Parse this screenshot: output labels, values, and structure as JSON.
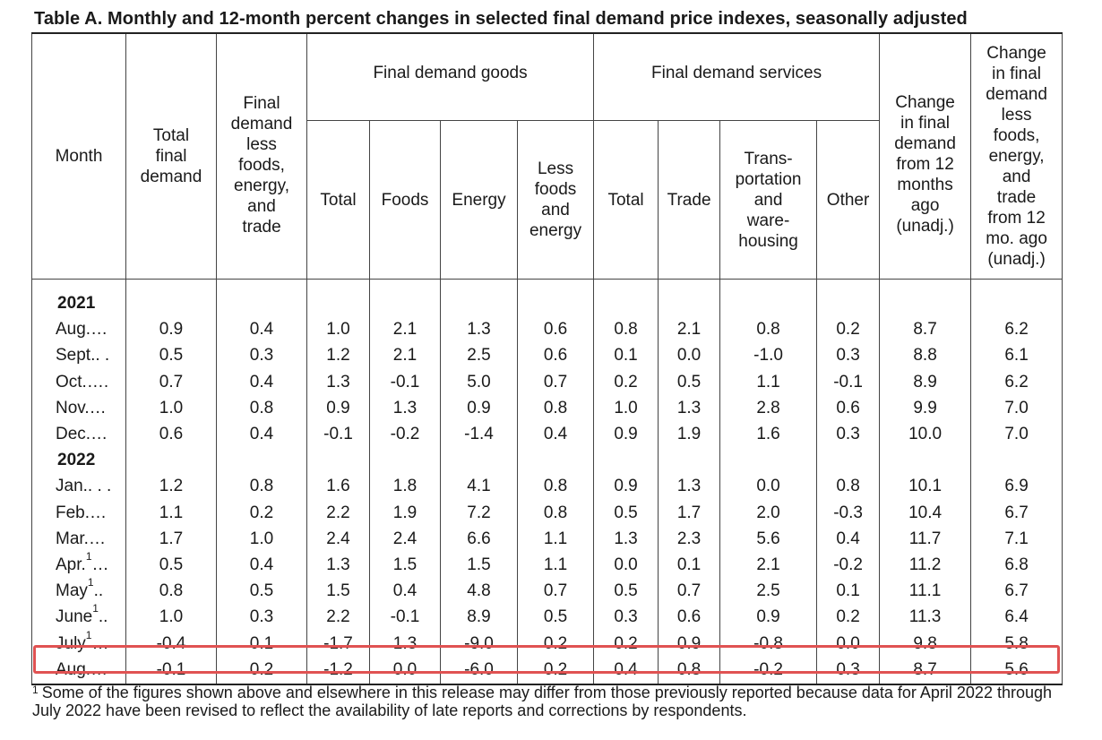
{
  "title": "Table A. Monthly and 12-month percent changes in selected final demand price indexes, seasonally adjusted",
  "header": {
    "month": "Month",
    "total_final_demand": [
      "Total",
      "final",
      "demand"
    ],
    "final_demand_less": [
      "Final",
      "demand",
      "less",
      "foods,",
      "energy,",
      "and",
      "trade"
    ],
    "goods_group": "Final demand goods",
    "services_group": "Final demand services",
    "goods_cols": {
      "total": "Total",
      "foods": "Foods",
      "energy": "Energy",
      "less_foods_energy": [
        "Less",
        "foods",
        "and",
        "energy"
      ]
    },
    "services_cols": {
      "total": "Total",
      "trade": "Trade",
      "transportation": [
        "Trans-",
        "portation",
        "and",
        "ware-",
        "housing"
      ],
      "other": "Other"
    },
    "change_12mo": [
      "Change",
      "in final",
      "demand",
      "from 12",
      "months",
      "ago",
      "(unadj.)"
    ],
    "change_less_12mo": [
      "Change",
      "in final",
      "demand",
      "less",
      "foods,",
      "energy,",
      "and",
      "trade",
      "from 12",
      "mo. ago",
      "(unadj.)"
    ]
  },
  "rows": [
    {
      "year": "2021"
    },
    {
      "month": "Aug.…",
      "values": [
        "0.9",
        "0.4",
        "1.0",
        "2.1",
        "1.3",
        "0.6",
        "0.8",
        "2.1",
        "0.8",
        "0.2",
        "8.7",
        "6.2"
      ]
    },
    {
      "month": "Sept.. .",
      "values": [
        "0.5",
        "0.3",
        "1.2",
        "2.1",
        "2.5",
        "0.6",
        "0.1",
        "0.0",
        "-1.0",
        "0.3",
        "8.8",
        "6.1"
      ]
    },
    {
      "month": "Oct.….",
      "values": [
        "0.7",
        "0.4",
        "1.3",
        "-0.1",
        "5.0",
        "0.7",
        "0.2",
        "0.5",
        "1.1",
        "-0.1",
        "8.9",
        "6.2"
      ]
    },
    {
      "month": "Nov.…",
      "values": [
        "1.0",
        "0.8",
        "0.9",
        "1.3",
        "0.9",
        "0.8",
        "1.0",
        "1.3",
        "2.8",
        "0.6",
        "9.9",
        "7.0"
      ]
    },
    {
      "month": "Dec.…",
      "values": [
        "0.6",
        "0.4",
        "-0.1",
        "-0.2",
        "-1.4",
        "0.4",
        "0.9",
        "1.9",
        "1.6",
        "0.3",
        "10.0",
        "7.0"
      ]
    },
    {
      "year": "2022"
    },
    {
      "month": "Jan.. . .",
      "values": [
        "1.2",
        "0.8",
        "1.6",
        "1.8",
        "4.1",
        "0.8",
        "0.9",
        "1.3",
        "0.0",
        "0.8",
        "10.1",
        "6.9"
      ]
    },
    {
      "month": "Feb.…",
      "values": [
        "1.1",
        "0.2",
        "2.2",
        "1.9",
        "7.2",
        "0.8",
        "0.5",
        "1.7",
        "2.0",
        "-0.3",
        "10.4",
        "6.7"
      ]
    },
    {
      "month": "Mar.…",
      "values": [
        "1.7",
        "1.0",
        "2.4",
        "2.4",
        "6.6",
        "1.1",
        "1.3",
        "2.3",
        "5.6",
        "0.4",
        "11.7",
        "7.1"
      ]
    },
    {
      "month": "Apr.",
      "sup": "1",
      "suffix": "…",
      "values": [
        "0.5",
        "0.4",
        "1.3",
        "1.5",
        "1.5",
        "1.1",
        "0.0",
        "0.1",
        "2.1",
        "-0.2",
        "11.2",
        "6.8"
      ]
    },
    {
      "month": "May",
      "sup": "1",
      "suffix": "..",
      "values": [
        "0.8",
        "0.5",
        "1.5",
        "0.4",
        "4.8",
        "0.7",
        "0.5",
        "0.7",
        "2.5",
        "0.1",
        "11.1",
        "6.7"
      ]
    },
    {
      "month": "June",
      "sup": "1",
      "suffix": "..",
      "values": [
        "1.0",
        "0.3",
        "2.2",
        "-0.1",
        "8.9",
        "0.5",
        "0.3",
        "0.6",
        "0.9",
        "0.2",
        "11.3",
        "6.4"
      ]
    },
    {
      "month": "July",
      "sup": "1",
      "suffix": "…",
      "values": [
        "-0.4",
        "0.1",
        "-1.7",
        "1.3",
        "-9.0",
        "0.2",
        "0.2",
        "0.9",
        "-0.8",
        "0.0",
        "9.8",
        "5.8"
      ]
    },
    {
      "month": "Aug.…",
      "values": [
        "-0.1",
        "0.2",
        "-1.2",
        "0.0",
        "-6.0",
        "0.2",
        "0.4",
        "0.8",
        "-0.2",
        "0.3",
        "8.7",
        "5.6"
      ],
      "highlight": true
    }
  ],
  "footnote": {
    "marker": "1",
    "text": "Some of the figures shown above and elsewhere in this release may differ from those previously reported because data for April 2022 through July 2022 have been revised to reflect the availability of late reports and corrections by respondents."
  },
  "colors": {
    "highlight_border": "#e05252",
    "rule": "#444444"
  }
}
